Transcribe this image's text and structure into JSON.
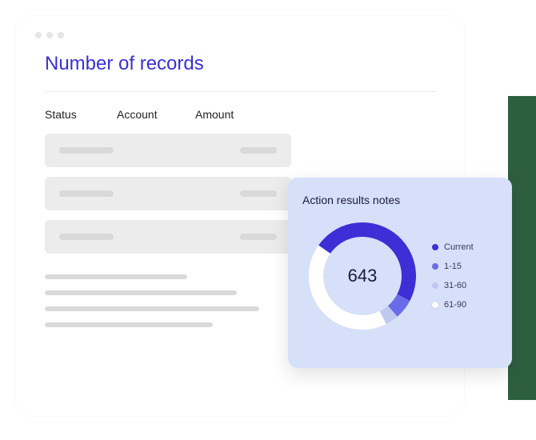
{
  "window": {
    "title": "Number of records",
    "title_color": "#3d2fd6",
    "title_fontsize": 24
  },
  "table": {
    "columns": [
      "Status",
      "Account",
      "Amount"
    ],
    "placeholder_rows": 3,
    "row_bg": "#ececec",
    "bar_color": "#d9d9d9"
  },
  "text_lines": {
    "widths": [
      178,
      240,
      268,
      210
    ],
    "color": "#d9d9d9"
  },
  "action_card": {
    "title": "Action results notes",
    "bg_color": "#d6e0f9",
    "donut": {
      "center_value": "643",
      "type": "donut",
      "radius": 58,
      "stroke_width": 18,
      "track_color": "#ffffff",
      "segments": [
        {
          "label": "Current",
          "color": "#3d2fd6",
          "pct": 48
        },
        {
          "label": "1-15",
          "color": "#6b6be8",
          "pct": 6
        },
        {
          "label": "31-60",
          "color": "#bfc9f0",
          "pct": 4
        },
        {
          "label": "61-90",
          "color": "#ffffff",
          "pct": 42
        }
      ],
      "start_angle": -55
    }
  },
  "decor": {
    "green_strip_color": "#2d5f3f"
  }
}
